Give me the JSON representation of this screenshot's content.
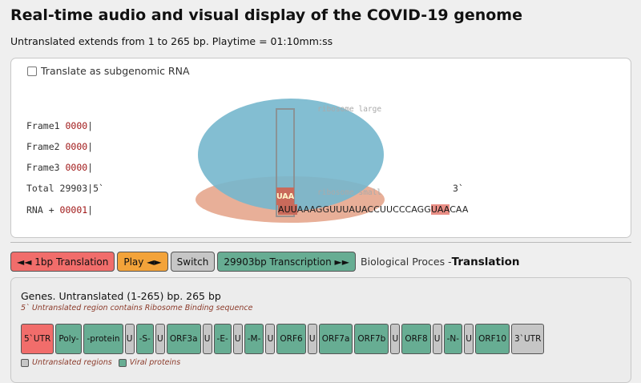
{
  "page": {
    "title": "Real-time audio and visual display of the COVID-19 genome",
    "subtitle": "Untranslated extends from 1 to 265 bp. Playtime = 01:10mm:ss"
  },
  "viz": {
    "checkbox_label": "Translate as subgenomic RNA",
    "frames": [
      {
        "label": "Frame1 ",
        "value": "0000",
        "suffix": "|"
      },
      {
        "label": "Frame2 ",
        "value": "0000",
        "suffix": "|"
      },
      {
        "label": "Frame3 ",
        "value": "0000",
        "suffix": "|"
      }
    ],
    "total_label": "Total 29903|5`",
    "rna_label": "RNA + ",
    "rna_value": "00001",
    "rna_suffix": "|",
    "ribosome_large": "ribosome large",
    "ribosome_small": "ribosome small",
    "codon": "UAA",
    "three_prime": "3`",
    "sequence": {
      "first_codon": "AUU",
      "middle": "AAAGGUUUAUACCUUCCCAGG",
      "stop_codon": "UAA",
      "tail": "CAA"
    }
  },
  "toolbar": {
    "translation_btn": "◄◄ 1bp Translation",
    "play_btn": "Play ◄►",
    "switch_btn": "Switch",
    "transcription_btn": "29903bp Transcription ►►",
    "process_label": "Biological Proces - ",
    "process_value": "Translation"
  },
  "genes": {
    "title": "Genes. Untranslated (1-265) bp. 265 bp",
    "note": "5` Untranslated region contains Ribosome Binding sequence",
    "items": [
      {
        "label": "5`UTR",
        "kind": "utr5"
      },
      {
        "label": "Poly-",
        "kind": "viral"
      },
      {
        "label": "-protein",
        "kind": "viral"
      },
      {
        "label": "U",
        "kind": "untr"
      },
      {
        "label": "-S-",
        "kind": "viral"
      },
      {
        "label": "U",
        "kind": "untr"
      },
      {
        "label": "ORF3a",
        "kind": "viral"
      },
      {
        "label": "U",
        "kind": "untr"
      },
      {
        "label": "-E-",
        "kind": "viral"
      },
      {
        "label": "U",
        "kind": "untr"
      },
      {
        "label": "-M-",
        "kind": "viral"
      },
      {
        "label": "U",
        "kind": "untr"
      },
      {
        "label": "ORF6",
        "kind": "viral"
      },
      {
        "label": "U",
        "kind": "untr"
      },
      {
        "label": "ORF7a",
        "kind": "viral"
      },
      {
        "label": "ORF7b",
        "kind": "viral"
      },
      {
        "label": "U",
        "kind": "untr"
      },
      {
        "label": "ORF8",
        "kind": "viral"
      },
      {
        "label": "U",
        "kind": "untr"
      },
      {
        "label": "-N-",
        "kind": "viral"
      },
      {
        "label": "U",
        "kind": "untr"
      },
      {
        "label": "ORF10",
        "kind": "viral"
      },
      {
        "label": "3`UTR",
        "kind": "untr"
      }
    ],
    "legend_untranslated": "Untranslated regions",
    "legend_viral": "Viral proteins"
  },
  "colors": {
    "utr5": "#f16d6b",
    "viral": "#67ad93",
    "untranslated": "#c6c6c6",
    "play": "#f3a33a",
    "ribosome_large": "#76b7cd",
    "ribosome_small": "#e6a68d"
  }
}
